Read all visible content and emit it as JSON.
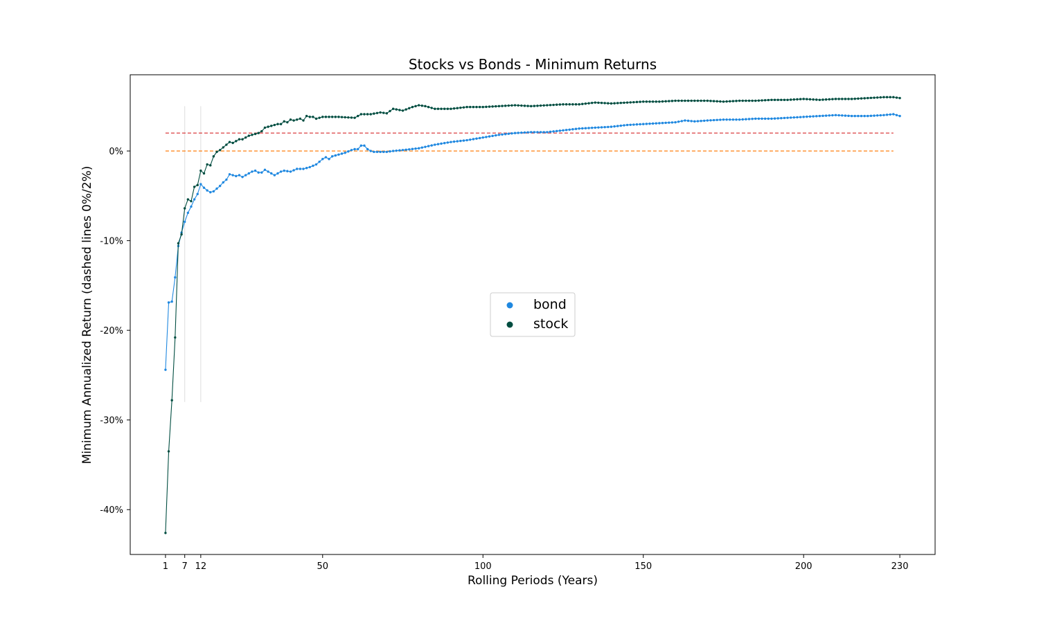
{
  "chart_data": {
    "type": "line",
    "title": "Stocks vs Bonds - Minimum Returns",
    "xlabel": "Rolling Periods (Years)",
    "ylabel": "Minimum Annualized Return (dashed lines 0%/2%)",
    "xlim": [
      -10,
      241
    ],
    "ylim": [
      -45,
      8.5
    ],
    "x_ticks": [
      1,
      7,
      12,
      50,
      100,
      150,
      200,
      230
    ],
    "y_ticks": [
      {
        "value": 0,
        "label": "0%"
      },
      {
        "value": -10,
        "label": "-10%"
      },
      {
        "value": -20,
        "label": "-20%"
      },
      {
        "value": -30,
        "label": "-30%"
      },
      {
        "value": -40,
        "label": "-40%"
      }
    ],
    "reference_lines": [
      {
        "y": 2,
        "color": "#d62728",
        "style": "dashed"
      },
      {
        "y": 0,
        "color": "#ff7f0e",
        "style": "dashed"
      }
    ],
    "vertical_markers": [
      7,
      12
    ],
    "legend": {
      "placement": "center",
      "entries": [
        "bond",
        "stock"
      ]
    },
    "series": [
      {
        "name": "bond",
        "color": "#1f88e0",
        "keypoints": [
          [
            1,
            -24.4
          ],
          [
            2,
            -16.9
          ],
          [
            3,
            -16.8
          ],
          [
            4,
            -14.1
          ],
          [
            5,
            -10.6
          ],
          [
            6,
            -9.1
          ],
          [
            7,
            -7.9
          ],
          [
            8,
            -6.9
          ],
          [
            9,
            -6.2
          ],
          [
            10,
            -5.4
          ],
          [
            11,
            -4.8
          ],
          [
            12,
            -3.7
          ],
          [
            13,
            -4.1
          ],
          [
            14,
            -4.4
          ],
          [
            15,
            -4.6
          ],
          [
            16,
            -4.5
          ],
          [
            17,
            -4.2
          ],
          [
            18,
            -3.9
          ],
          [
            19,
            -3.5
          ],
          [
            20,
            -3.2
          ],
          [
            21,
            -2.6
          ],
          [
            22,
            -2.7
          ],
          [
            23,
            -2.8
          ],
          [
            24,
            -2.7
          ],
          [
            25,
            -2.9
          ],
          [
            26,
            -2.7
          ],
          [
            28,
            -2.3
          ],
          [
            29,
            -2.2
          ],
          [
            30,
            -2.4
          ],
          [
            31,
            -2.4
          ],
          [
            32,
            -2.1
          ],
          [
            33,
            -2.3
          ],
          [
            34,
            -2.5
          ],
          [
            35,
            -2.7
          ],
          [
            36,
            -2.5
          ],
          [
            37,
            -2.3
          ],
          [
            38,
            -2.2
          ],
          [
            40,
            -2.3
          ],
          [
            42,
            -2.0
          ],
          [
            44,
            -2.0
          ],
          [
            46,
            -1.8
          ],
          [
            48,
            -1.5
          ],
          [
            50,
            -0.9
          ],
          [
            51,
            -0.7
          ],
          [
            52,
            -0.9
          ],
          [
            53,
            -0.6
          ],
          [
            55,
            -0.4
          ],
          [
            57,
            -0.2
          ],
          [
            59,
            0.1
          ],
          [
            60,
            0.2
          ],
          [
            61,
            0.2
          ],
          [
            62,
            0.6
          ],
          [
            63,
            0.6
          ],
          [
            64,
            0.2
          ],
          [
            65,
            0.0
          ],
          [
            66,
            -0.1
          ],
          [
            70,
            -0.1
          ],
          [
            72,
            0.0
          ],
          [
            75,
            0.1
          ],
          [
            80,
            0.3
          ],
          [
            85,
            0.7
          ],
          [
            90,
            1.0
          ],
          [
            95,
            1.2
          ],
          [
            100,
            1.5
          ],
          [
            105,
            1.8
          ],
          [
            110,
            2.0
          ],
          [
            115,
            2.1
          ],
          [
            120,
            2.1
          ],
          [
            125,
            2.3
          ],
          [
            130,
            2.5
          ],
          [
            135,
            2.6
          ],
          [
            140,
            2.7
          ],
          [
            145,
            2.9
          ],
          [
            150,
            3.0
          ],
          [
            155,
            3.1
          ],
          [
            160,
            3.2
          ],
          [
            163,
            3.4
          ],
          [
            166,
            3.3
          ],
          [
            170,
            3.4
          ],
          [
            175,
            3.5
          ],
          [
            180,
            3.5
          ],
          [
            185,
            3.6
          ],
          [
            190,
            3.6
          ],
          [
            195,
            3.7
          ],
          [
            200,
            3.8
          ],
          [
            205,
            3.9
          ],
          [
            210,
            4.0
          ],
          [
            215,
            3.9
          ],
          [
            220,
            3.9
          ],
          [
            225,
            4.0
          ],
          [
            228,
            4.1
          ],
          [
            230,
            3.9
          ]
        ]
      },
      {
        "name": "stock",
        "color": "#004d40",
        "keypoints": [
          [
            1,
            -42.6
          ],
          [
            2,
            -33.5
          ],
          [
            3,
            -27.8
          ],
          [
            4,
            -20.8
          ],
          [
            5,
            -10.3
          ],
          [
            6,
            -9.3
          ],
          [
            7,
            -6.4
          ],
          [
            8,
            -5.4
          ],
          [
            9,
            -5.6
          ],
          [
            10,
            -4.0
          ],
          [
            11,
            -3.8
          ],
          [
            12,
            -2.2
          ],
          [
            13,
            -2.5
          ],
          [
            14,
            -1.5
          ],
          [
            15,
            -1.6
          ],
          [
            16,
            -0.6
          ],
          [
            17,
            -0.1
          ],
          [
            18,
            0.1
          ],
          [
            19,
            0.4
          ],
          [
            20,
            0.7
          ],
          [
            21,
            1.0
          ],
          [
            22,
            0.9
          ],
          [
            23,
            1.1
          ],
          [
            24,
            1.3
          ],
          [
            25,
            1.3
          ],
          [
            26,
            1.5
          ],
          [
            27,
            1.7
          ],
          [
            28,
            1.8
          ],
          [
            29,
            1.9
          ],
          [
            30,
            2.0
          ],
          [
            31,
            2.2
          ],
          [
            32,
            2.6
          ],
          [
            33,
            2.7
          ],
          [
            34,
            2.8
          ],
          [
            35,
            2.9
          ],
          [
            36,
            3.0
          ],
          [
            37,
            3.0
          ],
          [
            38,
            3.3
          ],
          [
            39,
            3.2
          ],
          [
            40,
            3.5
          ],
          [
            41,
            3.4
          ],
          [
            42,
            3.5
          ],
          [
            43,
            3.6
          ],
          [
            44,
            3.4
          ],
          [
            45,
            3.9
          ],
          [
            46,
            3.8
          ],
          [
            47,
            3.8
          ],
          [
            48,
            3.6
          ],
          [
            50,
            3.8
          ],
          [
            55,
            3.8
          ],
          [
            60,
            3.7
          ],
          [
            62,
            4.1
          ],
          [
            65,
            4.1
          ],
          [
            68,
            4.3
          ],
          [
            70,
            4.2
          ],
          [
            72,
            4.7
          ],
          [
            75,
            4.5
          ],
          [
            78,
            4.9
          ],
          [
            80,
            5.1
          ],
          [
            82,
            5.0
          ],
          [
            85,
            4.7
          ],
          [
            90,
            4.7
          ],
          [
            95,
            4.9
          ],
          [
            100,
            4.9
          ],
          [
            105,
            5.0
          ],
          [
            110,
            5.1
          ],
          [
            115,
            5.0
          ],
          [
            120,
            5.1
          ],
          [
            125,
            5.2
          ],
          [
            130,
            5.2
          ],
          [
            135,
            5.4
          ],
          [
            140,
            5.3
          ],
          [
            145,
            5.4
          ],
          [
            150,
            5.5
          ],
          [
            155,
            5.5
          ],
          [
            160,
            5.6
          ],
          [
            165,
            5.6
          ],
          [
            170,
            5.6
          ],
          [
            175,
            5.5
          ],
          [
            180,
            5.6
          ],
          [
            185,
            5.6
          ],
          [
            190,
            5.7
          ],
          [
            195,
            5.7
          ],
          [
            200,
            5.8
          ],
          [
            205,
            5.7
          ],
          [
            210,
            5.8
          ],
          [
            215,
            5.8
          ],
          [
            220,
            5.9
          ],
          [
            225,
            6.0
          ],
          [
            228,
            6.0
          ],
          [
            230,
            5.9
          ]
        ]
      }
    ]
  }
}
